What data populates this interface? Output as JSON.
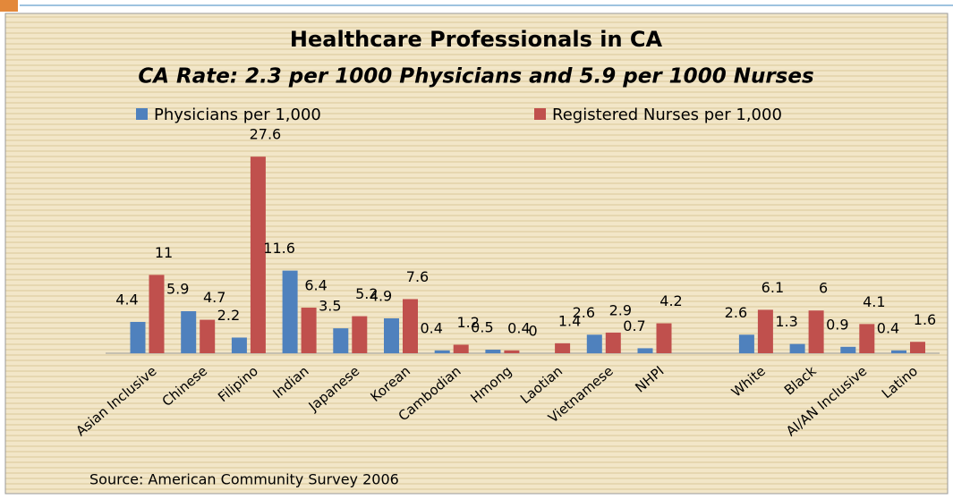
{
  "chart_data": {
    "type": "bar",
    "title": "Healthcare Professionals in CA",
    "subtitle": "CA Rate:  2.3 per 1000 Physicians and 5.9 per 1000 Nurses",
    "source": "Source: American Community Survey 2006",
    "categories": [
      "Asian Inclusive",
      "Chinese",
      "Filipino",
      "Indian",
      "Japanese",
      "Korean",
      "Cambodian",
      "Hmong",
      "Laotian",
      "Vietnamese",
      "NHPI",
      null,
      "White",
      "Black",
      "AI/AN Inclusive",
      "Latino"
    ],
    "series": [
      {
        "name": "Physicians per 1,000",
        "color": "#4f81bd",
        "values": [
          4.4,
          5.9,
          2.2,
          11.6,
          3.5,
          4.9,
          0.4,
          0.5,
          0,
          2.6,
          0.7,
          null,
          2.6,
          1.3,
          0.9,
          0.4
        ]
      },
      {
        "name": "Registered Nurses per 1,000",
        "color": "#c0504d",
        "values": [
          11,
          4.7,
          27.6,
          6.4,
          5.2,
          7.6,
          1.2,
          0.4,
          1.4,
          2.9,
          4.2,
          null,
          6.1,
          6,
          4.1,
          1.6
        ]
      }
    ],
    "ylim": [
      0,
      28
    ]
  }
}
